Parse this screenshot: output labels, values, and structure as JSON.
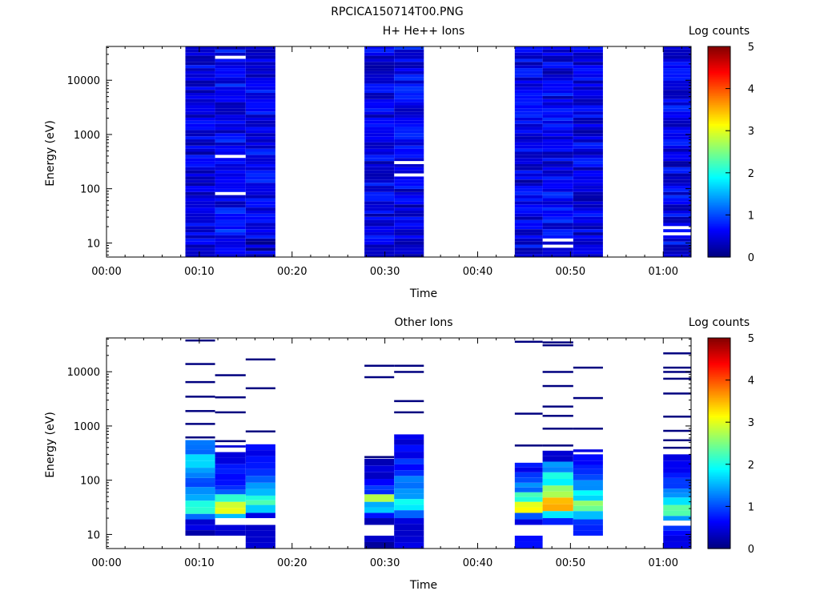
{
  "figure_title": "RPCICA150714T00.PNG",
  "chart_data": [
    {
      "type": "heatmap",
      "title": "H+ He++ Ions",
      "xlabel": "Time",
      "ylabel": "Energy (eV)",
      "y_scale": "log",
      "ylim": [
        5.5,
        42000
      ],
      "xlim_minutes": [
        0,
        63
      ],
      "x_tick_labels": [
        "00:00",
        "00:10",
        "00:20",
        "00:30",
        "00:40",
        "00:50",
        "01:00"
      ],
      "y_tick_labels": [
        "10",
        "100",
        "1000",
        "10000"
      ],
      "colorbar": {
        "label": "Log counts",
        "range": [
          0,
          5
        ],
        "tick_labels": [
          "0",
          "1",
          "2",
          "3",
          "4",
          "5"
        ]
      },
      "colormap": [
        "#00007f",
        "#0000ff",
        "#007fff",
        "#00ffff",
        "#7fff7f",
        "#ffff00",
        "#ff7f00",
        "#ff0000",
        "#7f0000"
      ],
      "columns": [
        {
          "start_min": 8.5,
          "end_min": 11.7,
          "low_eV": 5.5,
          "profile": [
            0.5,
            0.55,
            0.5,
            0.45,
            0.5,
            0.45,
            0.5,
            0.45,
            0.5,
            0.5,
            0.45,
            0.5
          ],
          "gaps_eV": []
        },
        {
          "start_min": 11.7,
          "end_min": 15.0,
          "low_eV": 5.5,
          "profile": [
            0.55,
            0.7,
            0.6,
            0.55,
            0.5,
            0.55,
            0.6,
            0.5,
            0.55,
            0.6,
            0.55,
            0.6
          ],
          "gaps_eV": [
            85,
            370,
            25000
          ]
        },
        {
          "start_min": 15.0,
          "end_min": 18.2,
          "low_eV": 5.5,
          "profile": [
            0.35,
            0.45,
            0.55,
            0.6,
            0.55,
            0.6,
            0.6,
            0.55,
            0.6,
            0.6,
            0.55,
            0.55
          ],
          "gaps_eV": []
        },
        {
          "start_min": 27.8,
          "end_min": 31.0,
          "low_eV": 5.5,
          "profile": [
            0.45,
            0.5,
            0.5,
            0.55,
            0.5,
            0.5,
            0.55,
            0.5,
            0.5,
            0.55,
            0.5,
            0.5
          ],
          "gaps_eV": []
        },
        {
          "start_min": 31.0,
          "end_min": 34.2,
          "low_eV": 5.5,
          "profile": [
            0.3,
            0.4,
            0.45,
            0.5,
            0.55,
            0.55,
            0.6,
            0.55,
            0.6,
            0.6,
            0.55,
            0.6
          ],
          "gaps_eV": [
            190,
            290
          ]
        },
        {
          "start_min": 44.0,
          "end_min": 47.0,
          "low_eV": 5.5,
          "profile": [
            0.55,
            0.45,
            0.5,
            0.5,
            0.45,
            0.5,
            0.55,
            0.5,
            0.5,
            0.55,
            0.5,
            0.55
          ],
          "gaps_eV": []
        },
        {
          "start_min": 47.0,
          "end_min": 50.3,
          "low_eV": 5.5,
          "profile": [
            0.5,
            0.6,
            0.75,
            0.6,
            0.5,
            0.45,
            0.5,
            0.55,
            0.5,
            0.55,
            0.5,
            0.55
          ],
          "gaps_eV": [
            8.5,
            11
          ]
        },
        {
          "start_min": 50.3,
          "end_min": 53.5,
          "low_eV": 5.5,
          "profile": [
            0.4,
            0.5,
            0.55,
            0.5,
            0.45,
            0.5,
            0.55,
            0.5,
            0.55,
            0.55,
            0.5,
            0.6
          ],
          "gaps_eV": []
        },
        {
          "start_min": 60.0,
          "end_min": 63.0,
          "low_eV": 5.5,
          "profile": [
            0.55,
            0.45,
            0.5,
            0.55,
            0.5,
            0.45,
            0.5,
            0.5,
            0.55,
            0.5,
            0.55,
            0.55
          ],
          "gaps_eV": [
            15,
            20
          ]
        }
      ]
    },
    {
      "type": "heatmap",
      "title": "Other Ions",
      "xlabel": "Time",
      "ylabel": "Energy (eV)",
      "y_scale": "log",
      "ylim": [
        5.5,
        42000
      ],
      "xlim_minutes": [
        0,
        63
      ],
      "x_tick_labels": [
        "00:00",
        "00:10",
        "00:20",
        "00:30",
        "00:40",
        "00:50",
        "01:00"
      ],
      "y_tick_labels": [
        "10",
        "100",
        "1000",
        "10000"
      ],
      "colorbar": {
        "label": "Log counts",
        "range": [
          0,
          5
        ],
        "tick_labels": [
          "0",
          "1",
          "2",
          "3",
          "4",
          "5"
        ]
      },
      "colormap": [
        "#00007f",
        "#0000ff",
        "#007fff",
        "#00ffff",
        "#7fff7f",
        "#ffff00",
        "#ff7f00",
        "#ff0000",
        "#7f0000"
      ],
      "columns": [
        {
          "start_min": 8.5,
          "end_min": 11.7,
          "bands": [
            [
              9.5,
              19,
              0.35
            ],
            [
              19,
              24,
              1.3
            ],
            [
              24,
              32,
              2.2
            ],
            [
              32,
              42,
              2.0
            ],
            [
              42,
              55,
              1.6
            ],
            [
              55,
              75,
              1.2
            ],
            [
              75,
              110,
              0.9
            ],
            [
              110,
              170,
              1.4
            ],
            [
              170,
              300,
              1.8
            ],
            [
              300,
              550,
              1.1
            ]
          ],
          "lines_eV": [
            620,
            1100,
            1900,
            3500,
            6500,
            14000,
            38000
          ]
        },
        {
          "start_min": 11.7,
          "end_min": 15.0,
          "bands": [
            [
              9.5,
              15,
              0.4
            ],
            [
              20,
              24,
              1.6
            ],
            [
              24,
              40,
              2.9
            ],
            [
              40,
              55,
              2.2
            ],
            [
              55,
              80,
              1.0
            ],
            [
              80,
              130,
              0.6
            ],
            [
              130,
              200,
              0.8
            ],
            [
              200,
              330,
              0.5
            ],
            [
              400,
              440,
              0.5
            ]
          ],
          "lines_eV": [
            530,
            1800,
            3400,
            8700
          ]
        },
        {
          "start_min": 15.0,
          "end_min": 18.2,
          "bands": [
            [
              5.5,
              15,
              0.3
            ],
            [
              20,
              25,
              0.5
            ],
            [
              25,
              35,
              1.5
            ],
            [
              35,
              52,
              2.2
            ],
            [
              52,
              90,
              1.4
            ],
            [
              90,
              160,
              1.0
            ],
            [
              160,
              280,
              0.7
            ],
            [
              280,
              460,
              0.6
            ]
          ],
          "lines_eV": [
            800,
            5000,
            17000
          ]
        },
        {
          "start_min": 27.8,
          "end_min": 31.0,
          "bands": [
            [
              5.5,
              9.5,
              0.3
            ],
            [
              15,
              20,
              0.4
            ],
            [
              20,
              25,
              0.8
            ],
            [
              25,
              40,
              1.6
            ],
            [
              40,
              55,
              2.6
            ],
            [
              55,
              80,
              0.9
            ],
            [
              80,
              140,
              0.5
            ],
            [
              140,
              250,
              0.4
            ]
          ],
          "lines_eV": [
            270,
            8000,
            13000
          ]
        },
        {
          "start_min": 31.0,
          "end_min": 34.2,
          "bands": [
            [
              5.5,
              20,
              0.4
            ],
            [
              20,
              28,
              1.2
            ],
            [
              28,
              45,
              1.8
            ],
            [
              45,
              70,
              1.5
            ],
            [
              70,
              120,
              1.2
            ],
            [
              120,
              250,
              0.8
            ],
            [
              250,
              450,
              0.6
            ],
            [
              450,
              700,
              0.4
            ]
          ],
          "lines_eV": [
            1800,
            2900,
            10000,
            13000
          ]
        },
        {
          "start_min": 44.0,
          "end_min": 47.0,
          "bands": [
            [
              5.5,
              9.5,
              0.6
            ],
            [
              15,
              19,
              0.4
            ],
            [
              19,
              25,
              0.9
            ],
            [
              25,
              40,
              3.0
            ],
            [
              40,
              60,
              2.1
            ],
            [
              60,
              90,
              1.2
            ],
            [
              90,
              140,
              0.9
            ],
            [
              140,
              210,
              0.6
            ]
          ],
          "lines_eV": [
            440,
            1700,
            36000
          ]
        },
        {
          "start_min": 47.0,
          "end_min": 50.3,
          "bands": [
            [
              15,
              20,
              0.7
            ],
            [
              20,
              27,
              1.9
            ],
            [
              27,
              48,
              3.6
            ],
            [
              48,
              80,
              2.7
            ],
            [
              80,
              140,
              1.9
            ],
            [
              140,
              220,
              1.3
            ],
            [
              220,
              350,
              0.5
            ]
          ],
          "lines_eV": [
            440,
            900,
            1550,
            2300,
            5500,
            10000,
            31000,
            35000
          ]
        },
        {
          "start_min": 50.3,
          "end_min": 53.5,
          "bands": [
            [
              9.5,
              19,
              0.8
            ],
            [
              19,
              27,
              1.5
            ],
            [
              27,
              42,
              2.5
            ],
            [
              42,
              65,
              1.8
            ],
            [
              65,
              100,
              1.3
            ],
            [
              100,
              160,
              1.0
            ],
            [
              160,
              230,
              0.7
            ],
            [
              230,
              300,
              0.5
            ],
            [
              330,
              370,
              0.5
            ]
          ],
          "lines_eV": [
            900,
            3300,
            12000
          ]
        },
        {
          "start_min": 60.0,
          "end_min": 63.0,
          "bands": [
            [
              5.5,
              9.5,
              0.4
            ],
            [
              9.5,
              14.5,
              0.8
            ],
            [
              18,
              22,
              1.4
            ],
            [
              22,
              35,
              2.2
            ],
            [
              35,
              48,
              1.9
            ],
            [
              48,
              70,
              1.3
            ],
            [
              70,
              110,
              0.8
            ],
            [
              110,
              170,
              0.6
            ],
            [
              170,
              300,
              0.5
            ]
          ],
          "lines_eV": [
            400,
            550,
            820,
            1500,
            4000,
            7500,
            10000,
            12000,
            22000
          ]
        }
      ]
    }
  ]
}
